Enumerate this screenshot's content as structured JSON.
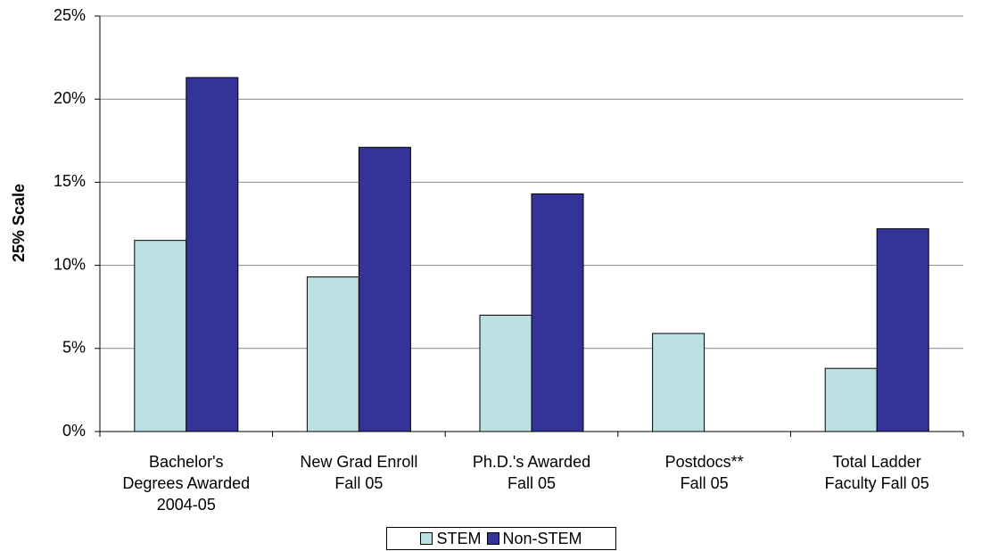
{
  "chart_data": {
    "type": "bar",
    "y_label": "25% Scale",
    "categories": [
      "Bachelor's\nDegrees Awarded\n2004-05",
      "New Grad Enroll\nFall 05",
      "Ph.D.'s Awarded\nFall 05",
      "Postdocs**\nFall 05",
      "Total Ladder\nFaculty Fall 05"
    ],
    "series": [
      {
        "name": "STEM",
        "color": "#bbe0e3",
        "values": [
          11.5,
          9.3,
          7.0,
          5.9,
          3.8
        ]
      },
      {
        "name": "Non-STEM",
        "color": "#333399",
        "values": [
          21.3,
          17.1,
          14.3,
          null,
          12.2
        ]
      }
    ],
    "ylim": [
      0,
      25
    ],
    "yticks": [
      {
        "value": 0,
        "label": "0%"
      },
      {
        "value": 5,
        "label": "5%"
      },
      {
        "value": 10,
        "label": "10%"
      },
      {
        "value": 15,
        "label": "15%"
      },
      {
        "value": 20,
        "label": "20%"
      },
      {
        "value": 25,
        "label": "25%"
      }
    ],
    "grid": true
  }
}
